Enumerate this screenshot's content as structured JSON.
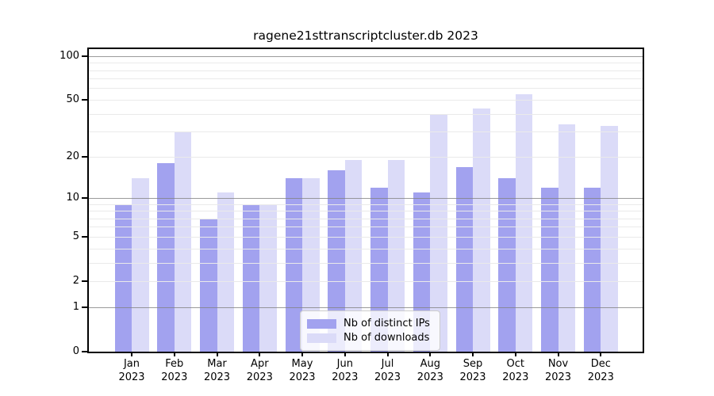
{
  "chart_data": {
    "type": "bar",
    "title": "ragene21sttranscriptcluster.db 2023",
    "x": {
      "categories": [
        "Jan",
        "Feb",
        "Mar",
        "Apr",
        "May",
        "Jun",
        "Jul",
        "Aug",
        "Sep",
        "Oct",
        "Nov",
        "Dec"
      ],
      "year": "2023"
    },
    "series": [
      {
        "name": "Nb of distinct IPs",
        "color": "#a2a2ef",
        "values": [
          9,
          18,
          7,
          9,
          14,
          16,
          12,
          11,
          17,
          14,
          12,
          12
        ]
      },
      {
        "name": "Nb of downloads",
        "color": "#dbdbf8",
        "values": [
          14,
          30,
          11,
          9,
          14,
          19,
          19,
          40,
          44,
          55,
          34,
          33
        ]
      }
    ],
    "y_axis": {
      "scale": "log10(1+value)",
      "ylim": [
        0,
        112
      ],
      "tick_labels": [
        100,
        50,
        20,
        10,
        5,
        2,
        1,
        0
      ],
      "major_gridlines": [
        1,
        10,
        100
      ],
      "minor_gridlines": [
        2,
        3,
        4,
        5,
        6,
        7,
        8,
        9,
        20,
        30,
        40,
        50,
        60,
        70,
        80,
        90
      ]
    },
    "legend": {
      "position": "lower-center-overlay"
    },
    "grid": true,
    "colors": {
      "minor_grid": "#eaeaea",
      "major_grid": "#828282",
      "spine": "#000000",
      "background": "#ffffff"
    }
  }
}
